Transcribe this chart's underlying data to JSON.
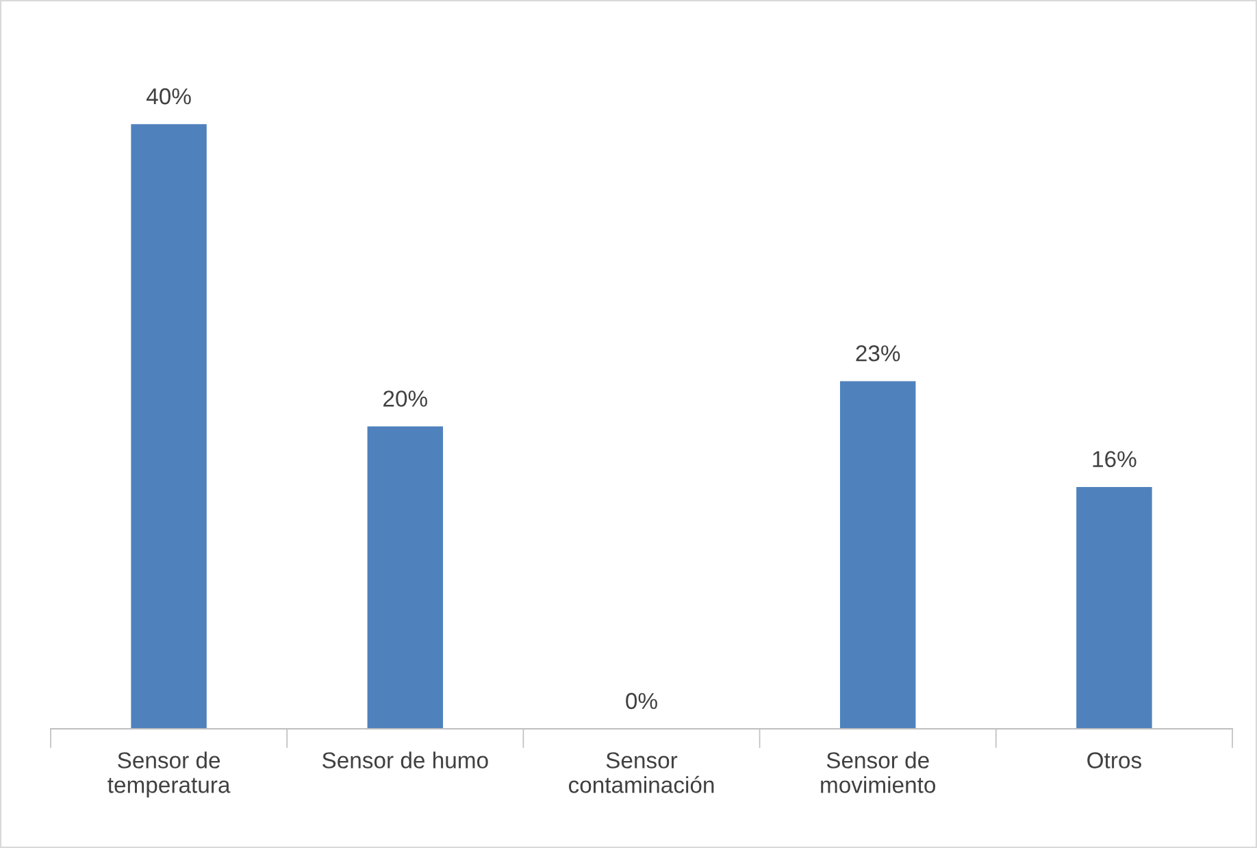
{
  "chart_data": {
    "type": "bar",
    "categories": [
      "Sensor de\ntemperatura",
      "Sensor de humo",
      "Sensor\ncontaminación",
      "Sensor de\nmovimiento",
      "Otros"
    ],
    "values": [
      40,
      20,
      0,
      23,
      16
    ],
    "value_labels": [
      "40%",
      "20%",
      "0%",
      "23%",
      "16%"
    ],
    "color": "#4f81bd"
  }
}
